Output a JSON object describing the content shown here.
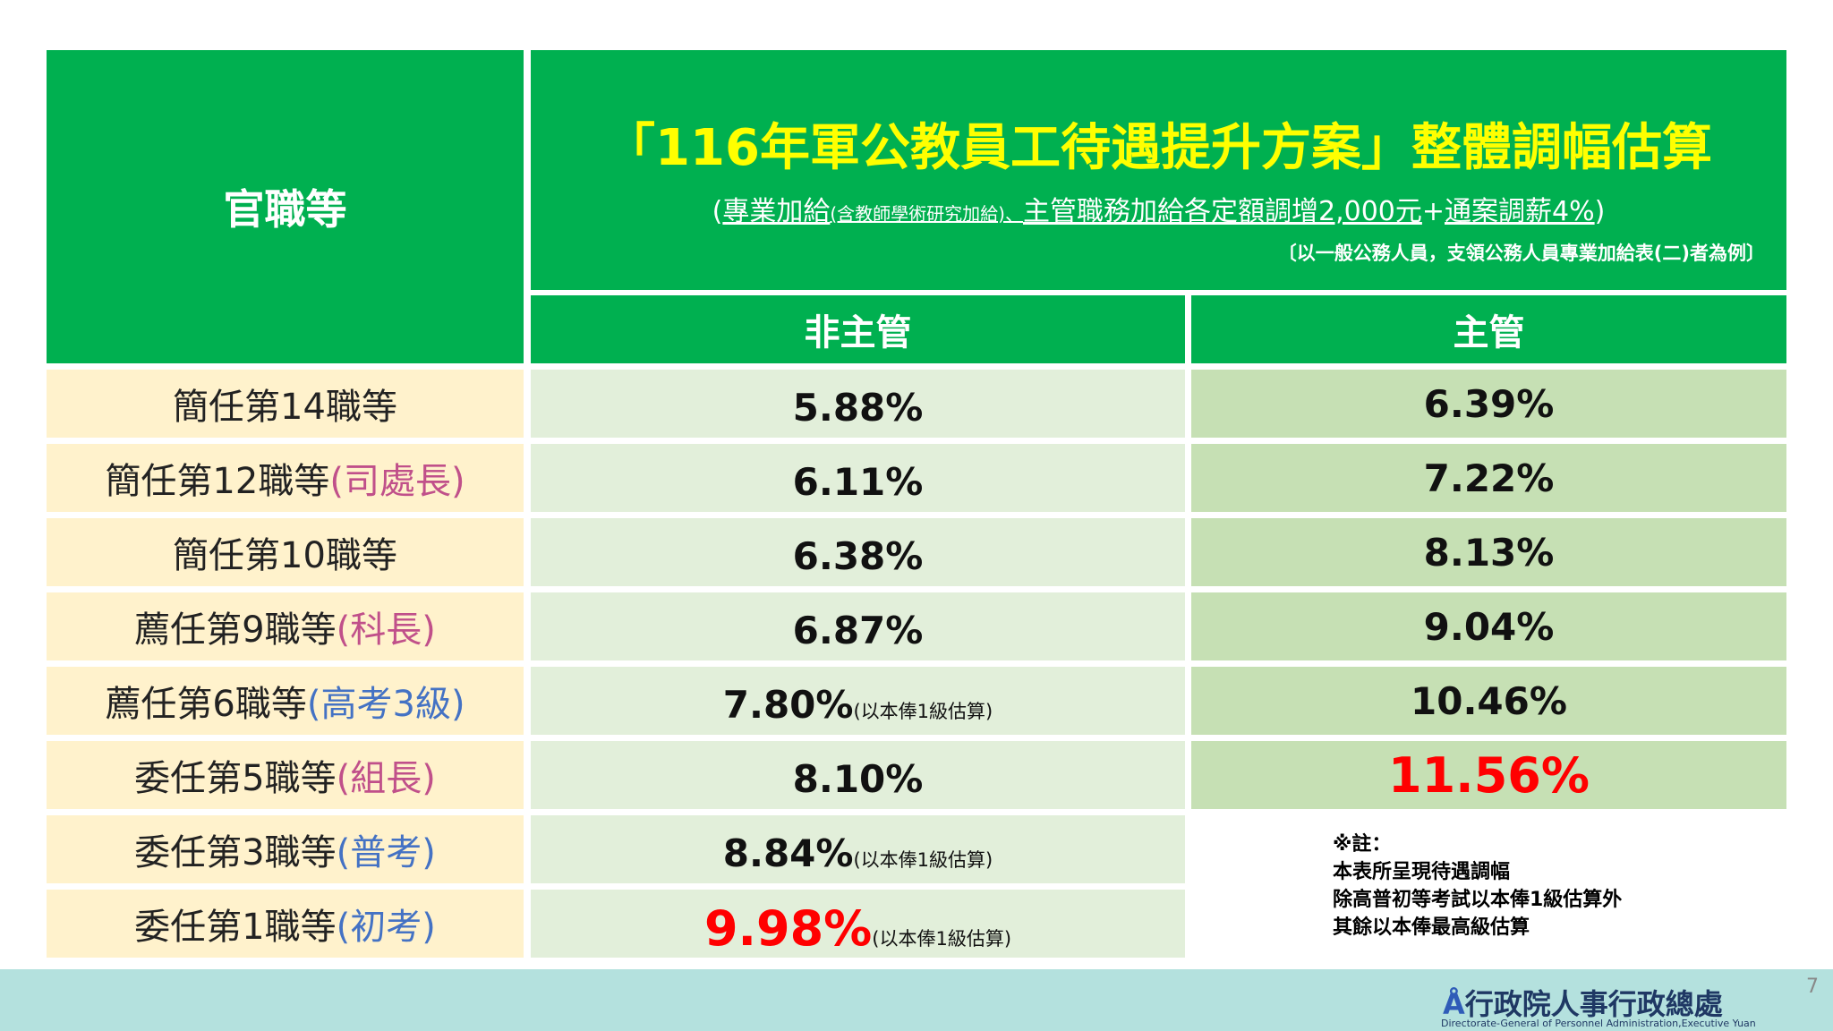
{
  "header": {
    "row_label": "官職等",
    "title": "「116年軍公教員工待遇提升方案」整體調幅估算",
    "subtitle": [
      {
        "text": "(",
        "style": "plain"
      },
      {
        "text": "專業加給",
        "style": "underline"
      },
      {
        "text": "(含教師學術研究加給)、",
        "style": "small-underline"
      },
      {
        "text": "主管職務加給各定額調增2,000元",
        "style": "underline"
      },
      {
        "text": "+",
        "style": "plain"
      },
      {
        "text": "通案調薪4%",
        "style": "underline"
      },
      {
        "text": ")",
        "style": "plain"
      }
    ],
    "scope": "〔以一般公務人員，支領公務人員專業加給表(二)者為例〕"
  },
  "columns": [
    "非主管",
    "主管"
  ],
  "rows": [
    {
      "grade": "簡任第14職等",
      "non_supervisor": "5.88%",
      "supervisor": "6.39%"
    },
    {
      "grade": "簡任第12職等",
      "role": "(司處長)",
      "role_color": "#c0508a",
      "non_supervisor": "6.11%",
      "supervisor": "7.22%"
    },
    {
      "grade": "簡任第10職等",
      "non_supervisor": "6.38%",
      "supervisor": "8.13%"
    },
    {
      "grade": "薦任第9職等",
      "role": "(科長)",
      "role_color": "#c0508a",
      "non_supervisor": "6.87%",
      "supervisor": "9.04%"
    },
    {
      "grade": "薦任第6職等",
      "role": "(高考3級)",
      "role_color": "#4472c4",
      "non_supervisor": "7.80%",
      "non_supervisor_note": "(以本俸1級估算)",
      "supervisor": "10.46%"
    },
    {
      "grade": "委任第5職等",
      "role": "(組長)",
      "role_color": "#c0508a",
      "non_supervisor": "8.10%",
      "supervisor": "11.56%",
      "supervisor_color": "#ff0000"
    },
    {
      "grade": "委任第3職等",
      "role": "(普考)",
      "role_color": "#4472c4",
      "non_supervisor": "8.84%",
      "non_supervisor_note": "(以本俸1級估算)"
    },
    {
      "grade": "委任第1職等",
      "role": "(初考)",
      "role_color": "#4472c4",
      "non_supervisor": "9.98%",
      "non_supervisor_note": "(以本俸1級估算)",
      "non_supervisor_color": "#ff0000"
    }
  ],
  "note": [
    "※註：",
    "本表所呈現待遇調幅",
    "除高普初等考試以本俸1級估算外",
    "其餘以本俸最高級估算"
  ],
  "footer": {
    "organization": "行政院人事行政總處",
    "organization_en": "Directorate-General of Personnel Administration,Executive Yuan",
    "page": "7"
  }
}
